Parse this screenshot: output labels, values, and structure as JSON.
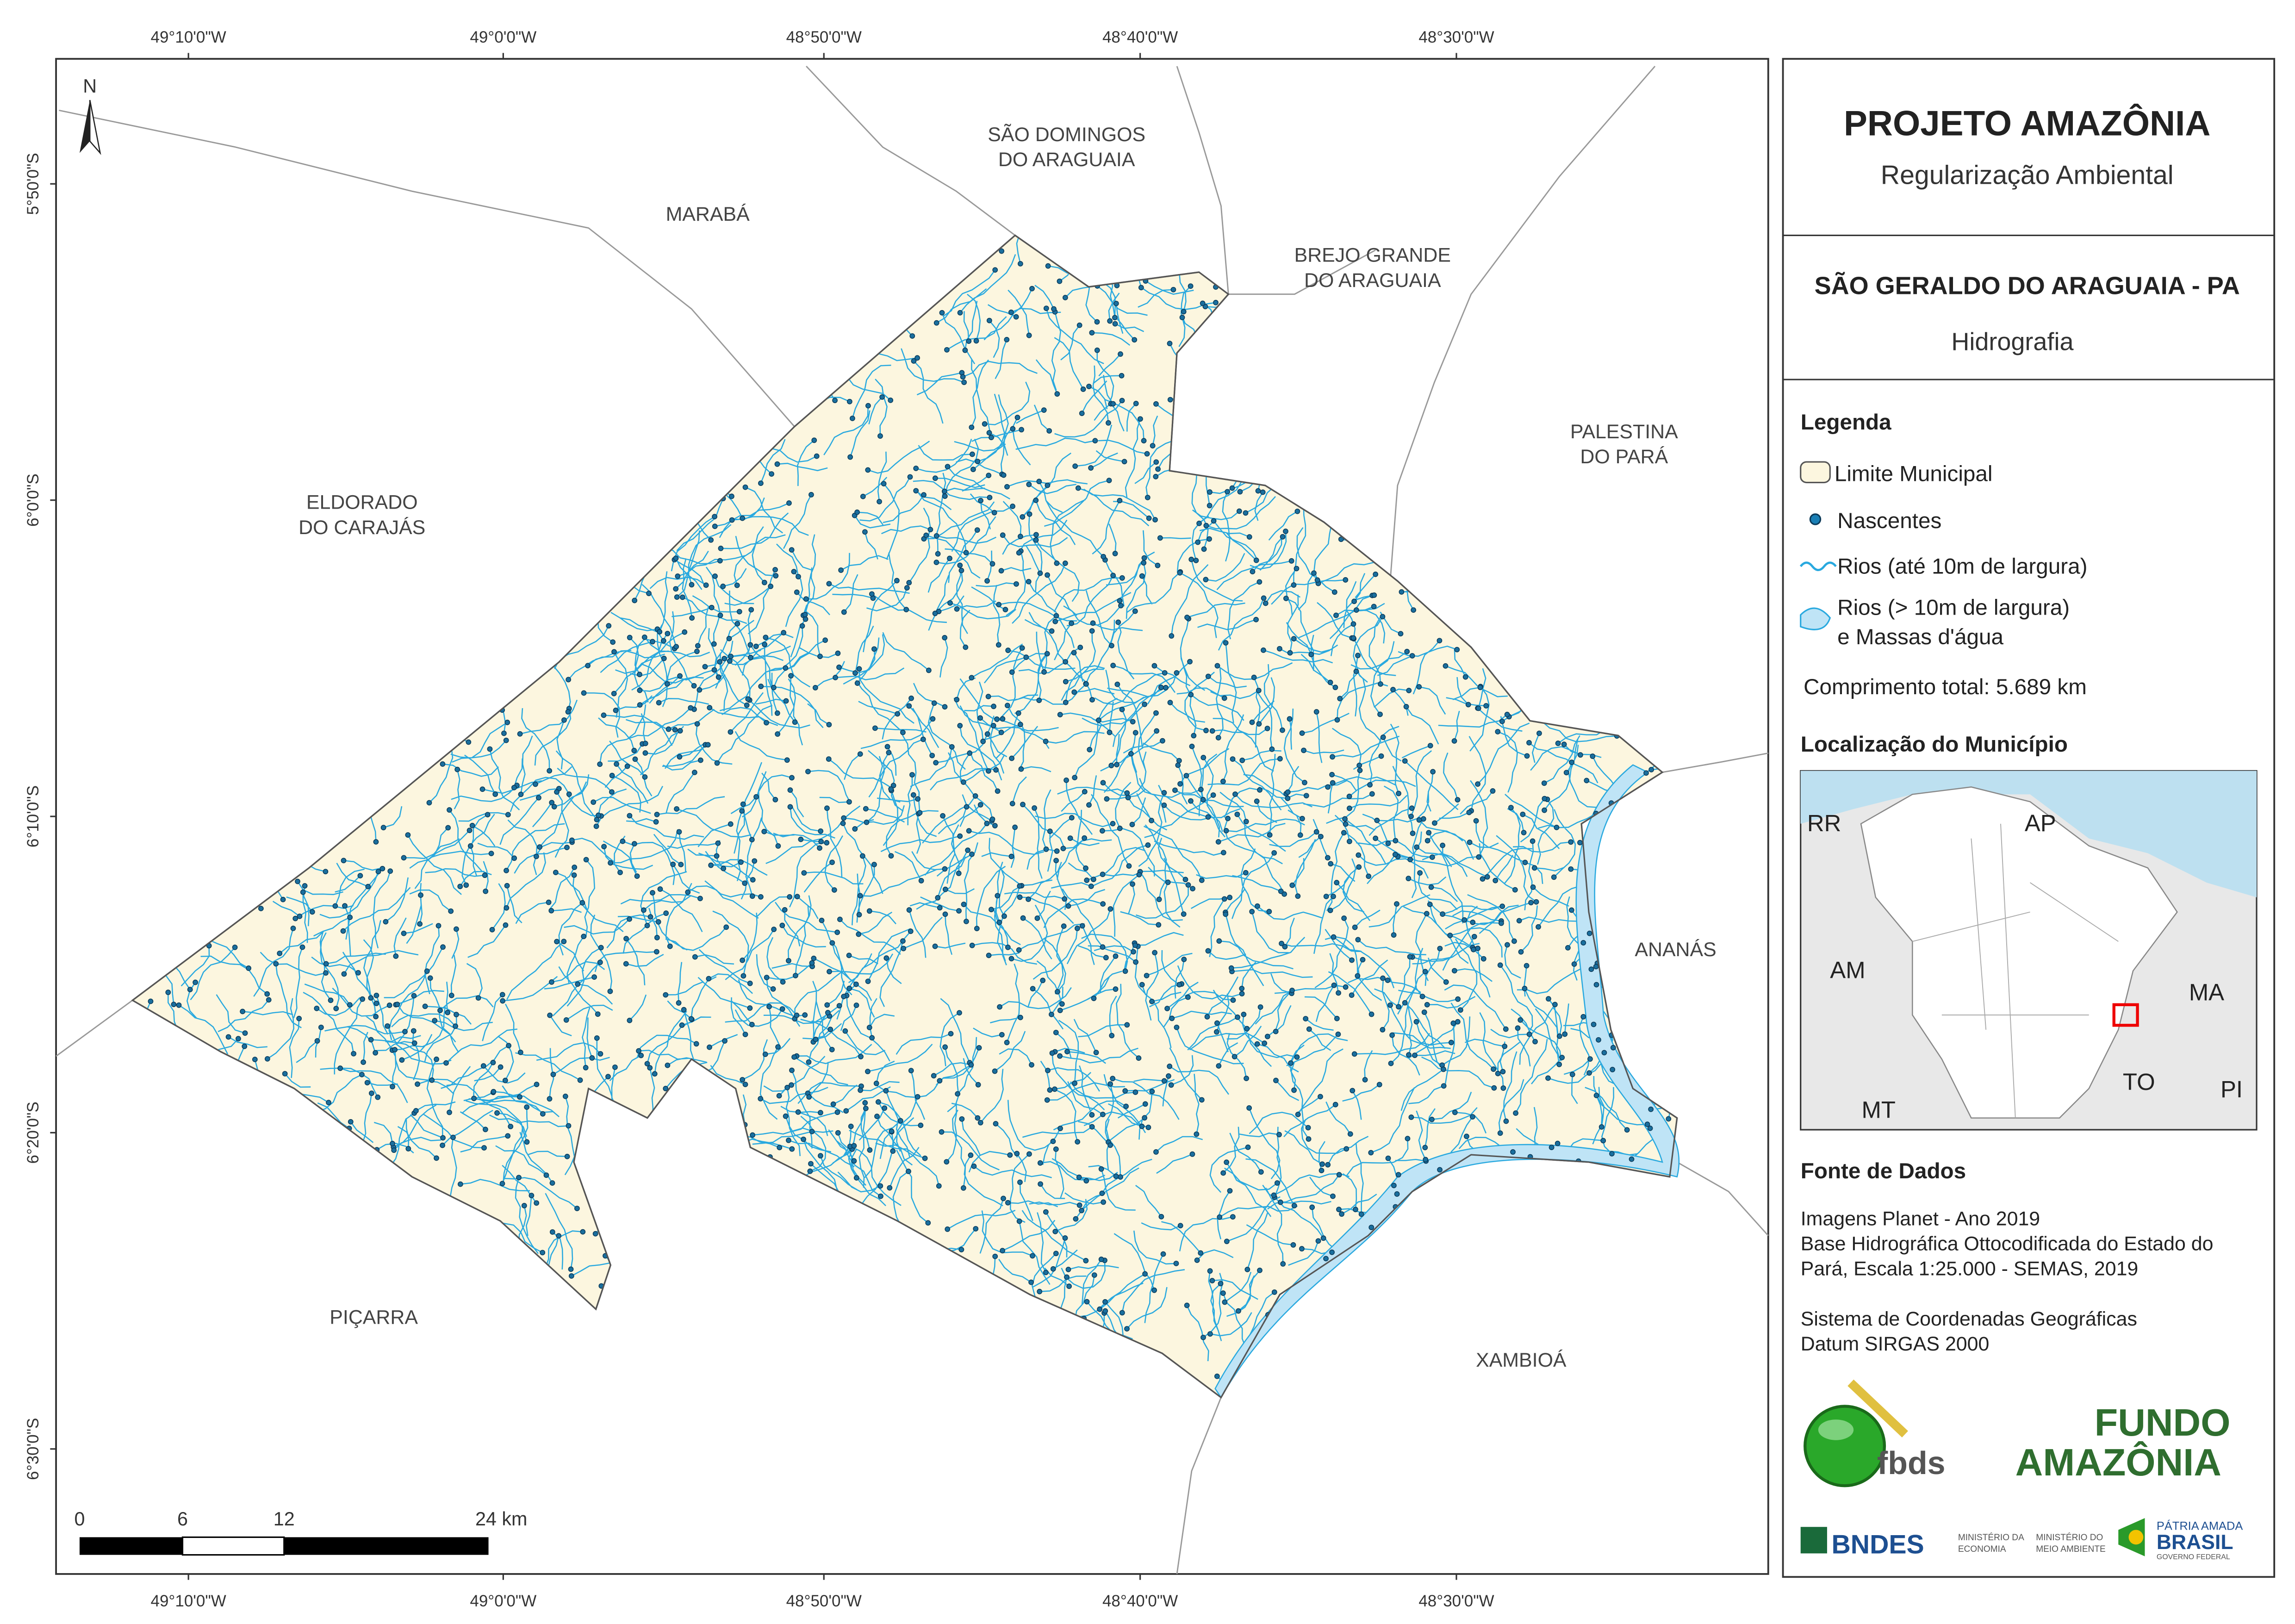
{
  "map": {
    "longitude_labels": [
      "49°10'0\"W",
      "49°0'0\"W",
      "48°50'0\"W",
      "48°40'0\"W",
      "48°30'0\"W"
    ],
    "latitude_labels": [
      "5°50'0\"S",
      "6°0'0\"S",
      "6°10'0\"S",
      "6°20'0\"S",
      "6°30'0\"S"
    ],
    "north": "N",
    "scale_labels": [
      "0",
      "6",
      "12",
      "24 km"
    ],
    "neighbors": [
      {
        "lines": [
          "MARABÁ"
        ]
      },
      {
        "lines": [
          "SÃO DOMINGOS",
          "DO ARAGUAIA"
        ]
      },
      {
        "lines": [
          "BREJO GRANDE",
          "DO ARAGUAIA"
        ]
      },
      {
        "lines": [
          "PALESTINA",
          "DO PARÁ"
        ]
      },
      {
        "lines": [
          "ELDORADO",
          "DO CARAJÁS"
        ]
      },
      {
        "lines": [
          "ANANÁS"
        ]
      },
      {
        "lines": [
          "PIÇARRA"
        ]
      },
      {
        "lines": [
          "XAMBIOÁ"
        ]
      }
    ]
  },
  "panel": {
    "title": "PROJETO AMAZÔNIA",
    "subtitle": "Regularização Ambiental",
    "municipality": "SÃO GERALDO DO ARAGUAIA - PA",
    "theme": "Hidrografia",
    "legend": {
      "heading": "Legenda",
      "items": [
        "Limite Municipal",
        "Nascentes",
        "Rios (até 10m de largura)",
        "Rios (> 10m de largura)",
        "e Massas d'água"
      ],
      "total": "Comprimento total: 5.689 km"
    },
    "location": {
      "heading": "Localização do Município",
      "states": [
        "RR",
        "AP",
        "AM",
        "MA",
        "TO",
        "PI",
        "MT"
      ]
    },
    "sources": {
      "heading": "Fonte de Dados",
      "lines": [
        "Imagens Planet - Ano 2019",
        "Base Hidrográfica Ottocodificada do Estado do",
        "Pará, Escala 1:25.000 - SEMAS, 2019",
        "Sistema de Coordenadas Geográficas",
        "Datum SIRGAS 2000"
      ]
    },
    "logos": {
      "fbds": "fbds",
      "fundo": "FUNDO",
      "amazonia": "AMAZÔNIA",
      "bndes": "BNDES",
      "ministry1": [
        "MINISTÉRIO DA",
        "ECONOMIA"
      ],
      "ministry2": [
        "MINISTÉRIO DO",
        "MEIO AMBIENTE"
      ],
      "patria": "PÁTRIA AMADA",
      "brasil": "BRASIL",
      "governo": "GOVERNO FEDERAL"
    }
  }
}
